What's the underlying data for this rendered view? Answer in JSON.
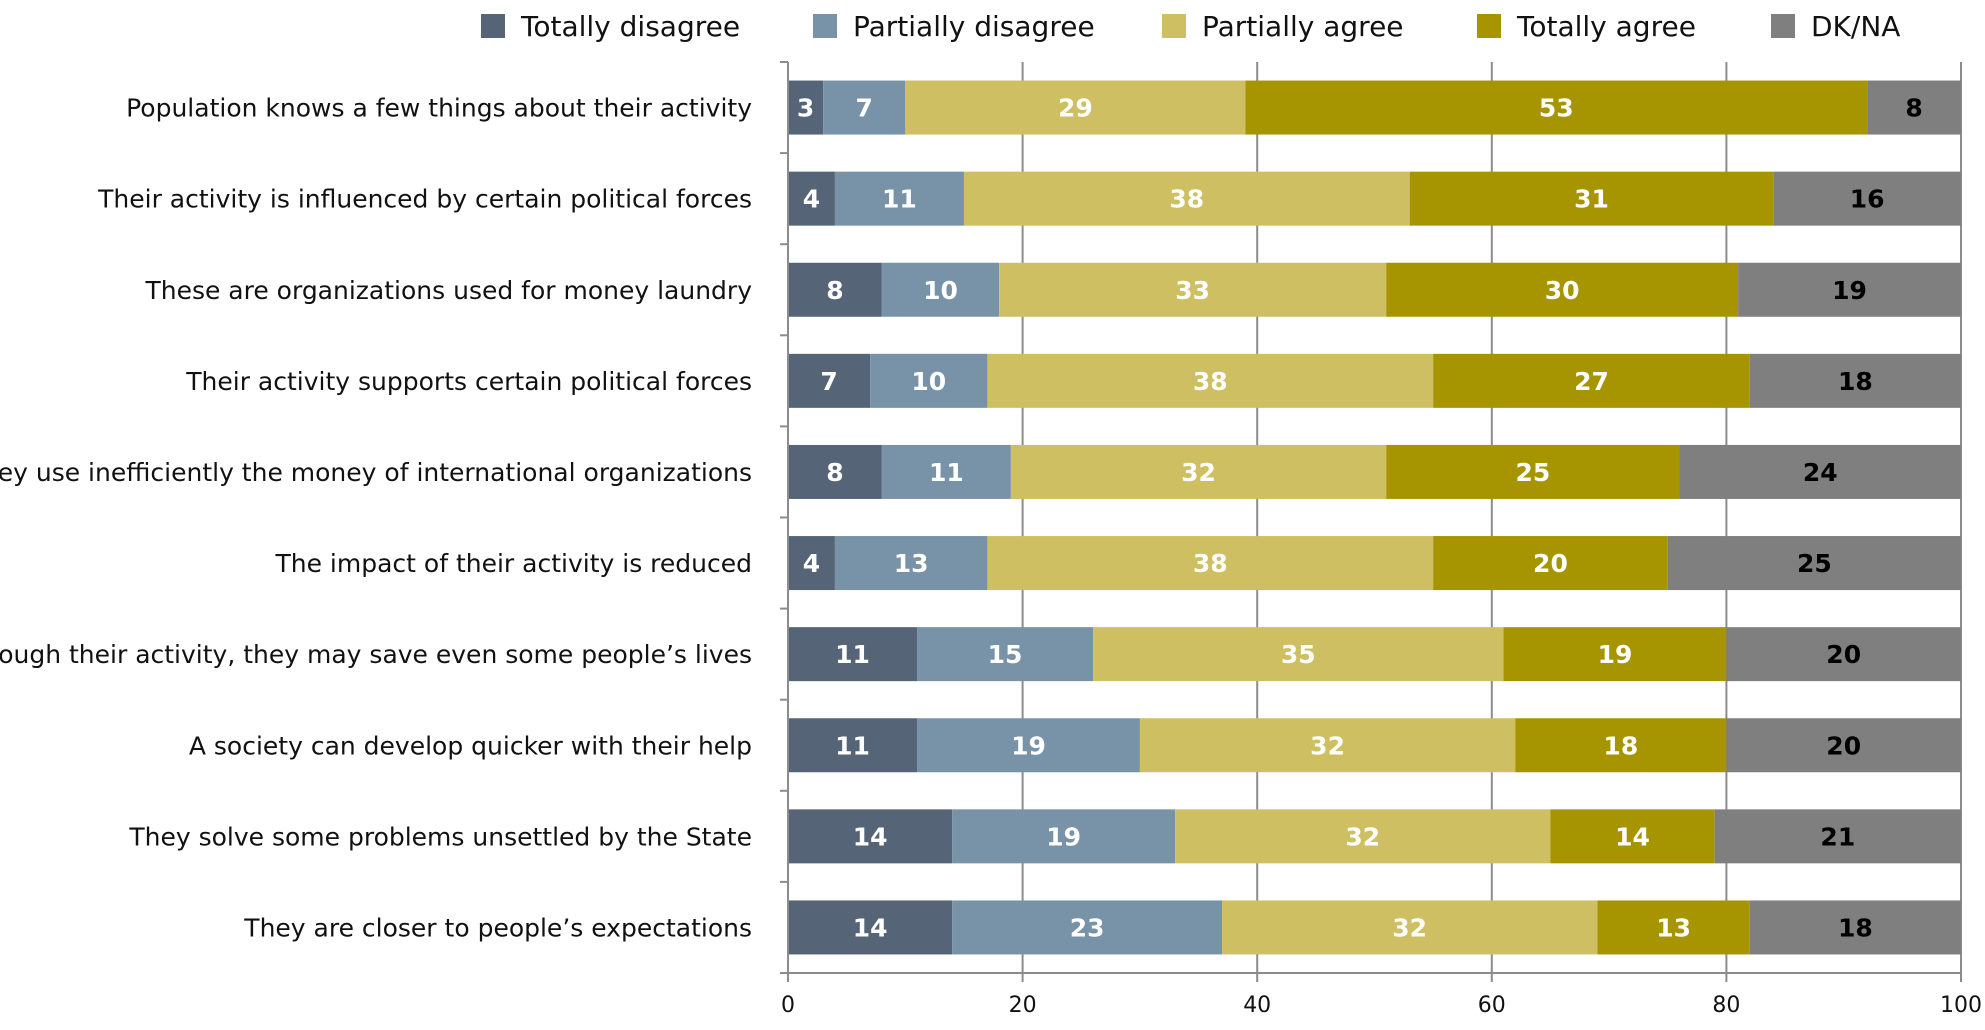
{
  "chart_data": {
    "type": "bar",
    "orientation": "horizontal",
    "stacked": true,
    "categories": [
      "Population knows a few things about their activity",
      "Their activity is influenced by certain political forces",
      "These are organizations used for money laundry",
      "Their activity supports certain political forces",
      "They use inefficiently the money of international organizations",
      "The impact of their activity is reduced",
      "Through their activity, they may save even some people’s lives",
      "A society can develop quicker with their help",
      "They solve some problems unsettled by the State",
      "They are closer to people’s expectations"
    ],
    "series": [
      {
        "name": "Totally disagree",
        "color": "#556476",
        "label_color": "#ffffff",
        "values": [
          3,
          4,
          8,
          7,
          8,
          4,
          11,
          11,
          14,
          14
        ]
      },
      {
        "name": "Partially disagree",
        "color": "#7892a8",
        "label_color": "#ffffff",
        "values": [
          7,
          11,
          10,
          10,
          11,
          13,
          15,
          19,
          19,
          23
        ]
      },
      {
        "name": "Partially agree",
        "color": "#cfbf63",
        "label_color": "#ffffff",
        "values": [
          29,
          38,
          33,
          38,
          32,
          38,
          35,
          32,
          32,
          32
        ]
      },
      {
        "name": "Totally agree",
        "color": "#a69500",
        "label_color": "#ffffff",
        "values": [
          53,
          31,
          30,
          27,
          25,
          20,
          19,
          18,
          14,
          13
        ]
      },
      {
        "name": "DK/NA",
        "color": "#7f7f7f",
        "label_color": "#000000",
        "values": [
          8,
          16,
          19,
          18,
          24,
          25,
          20,
          20,
          21,
          18
        ]
      }
    ],
    "xlim": [
      0,
      100
    ],
    "xticks": [
      0,
      20,
      40,
      60,
      80,
      100
    ],
    "grid": true,
    "legend_position": "top",
    "title": "",
    "xlabel": "",
    "ylabel": ""
  }
}
